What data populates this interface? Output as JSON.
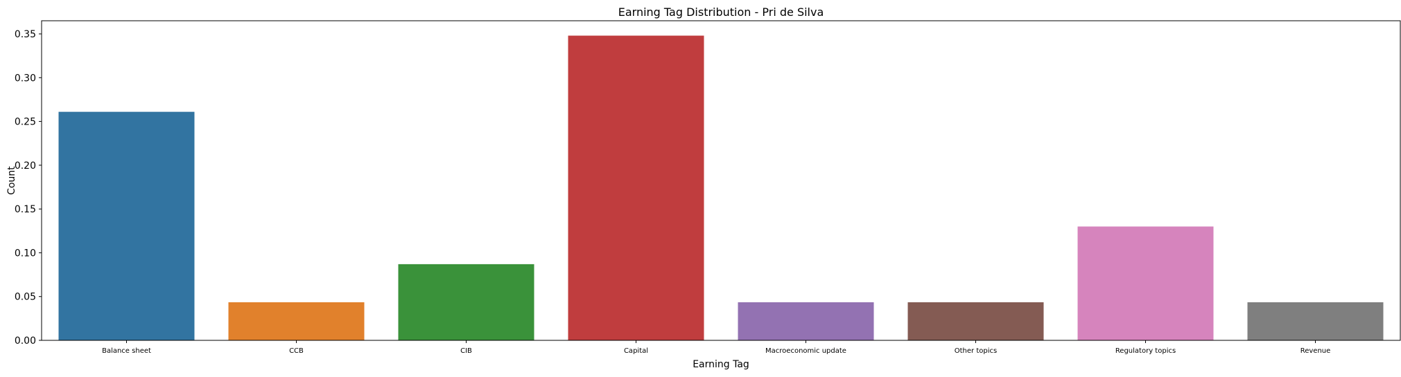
{
  "chart_data": {
    "type": "bar",
    "title": "Earning Tag Distribution - Pri de Silva",
    "xlabel": "Earning Tag",
    "ylabel": "Count",
    "categories": [
      "Balance sheet",
      "CCB",
      "CIB",
      "Capital",
      "Macroeconomic update",
      "Other topics",
      "Regulatory topics",
      "Revenue"
    ],
    "values": [
      0.261,
      0.0435,
      0.087,
      0.348,
      0.0435,
      0.0435,
      0.13,
      0.0435
    ],
    "colors": [
      "#3274a1",
      "#e1812c",
      "#3a923a",
      "#c03d3e",
      "#9372b2",
      "#845b53",
      "#d684bd",
      "#7f7f7f"
    ],
    "ylim": [
      0,
      0.365
    ],
    "yticks": [
      "0.00",
      "0.05",
      "0.10",
      "0.15",
      "0.20",
      "0.25",
      "0.30",
      "0.35"
    ],
    "grid": false,
    "legend": "none"
  }
}
